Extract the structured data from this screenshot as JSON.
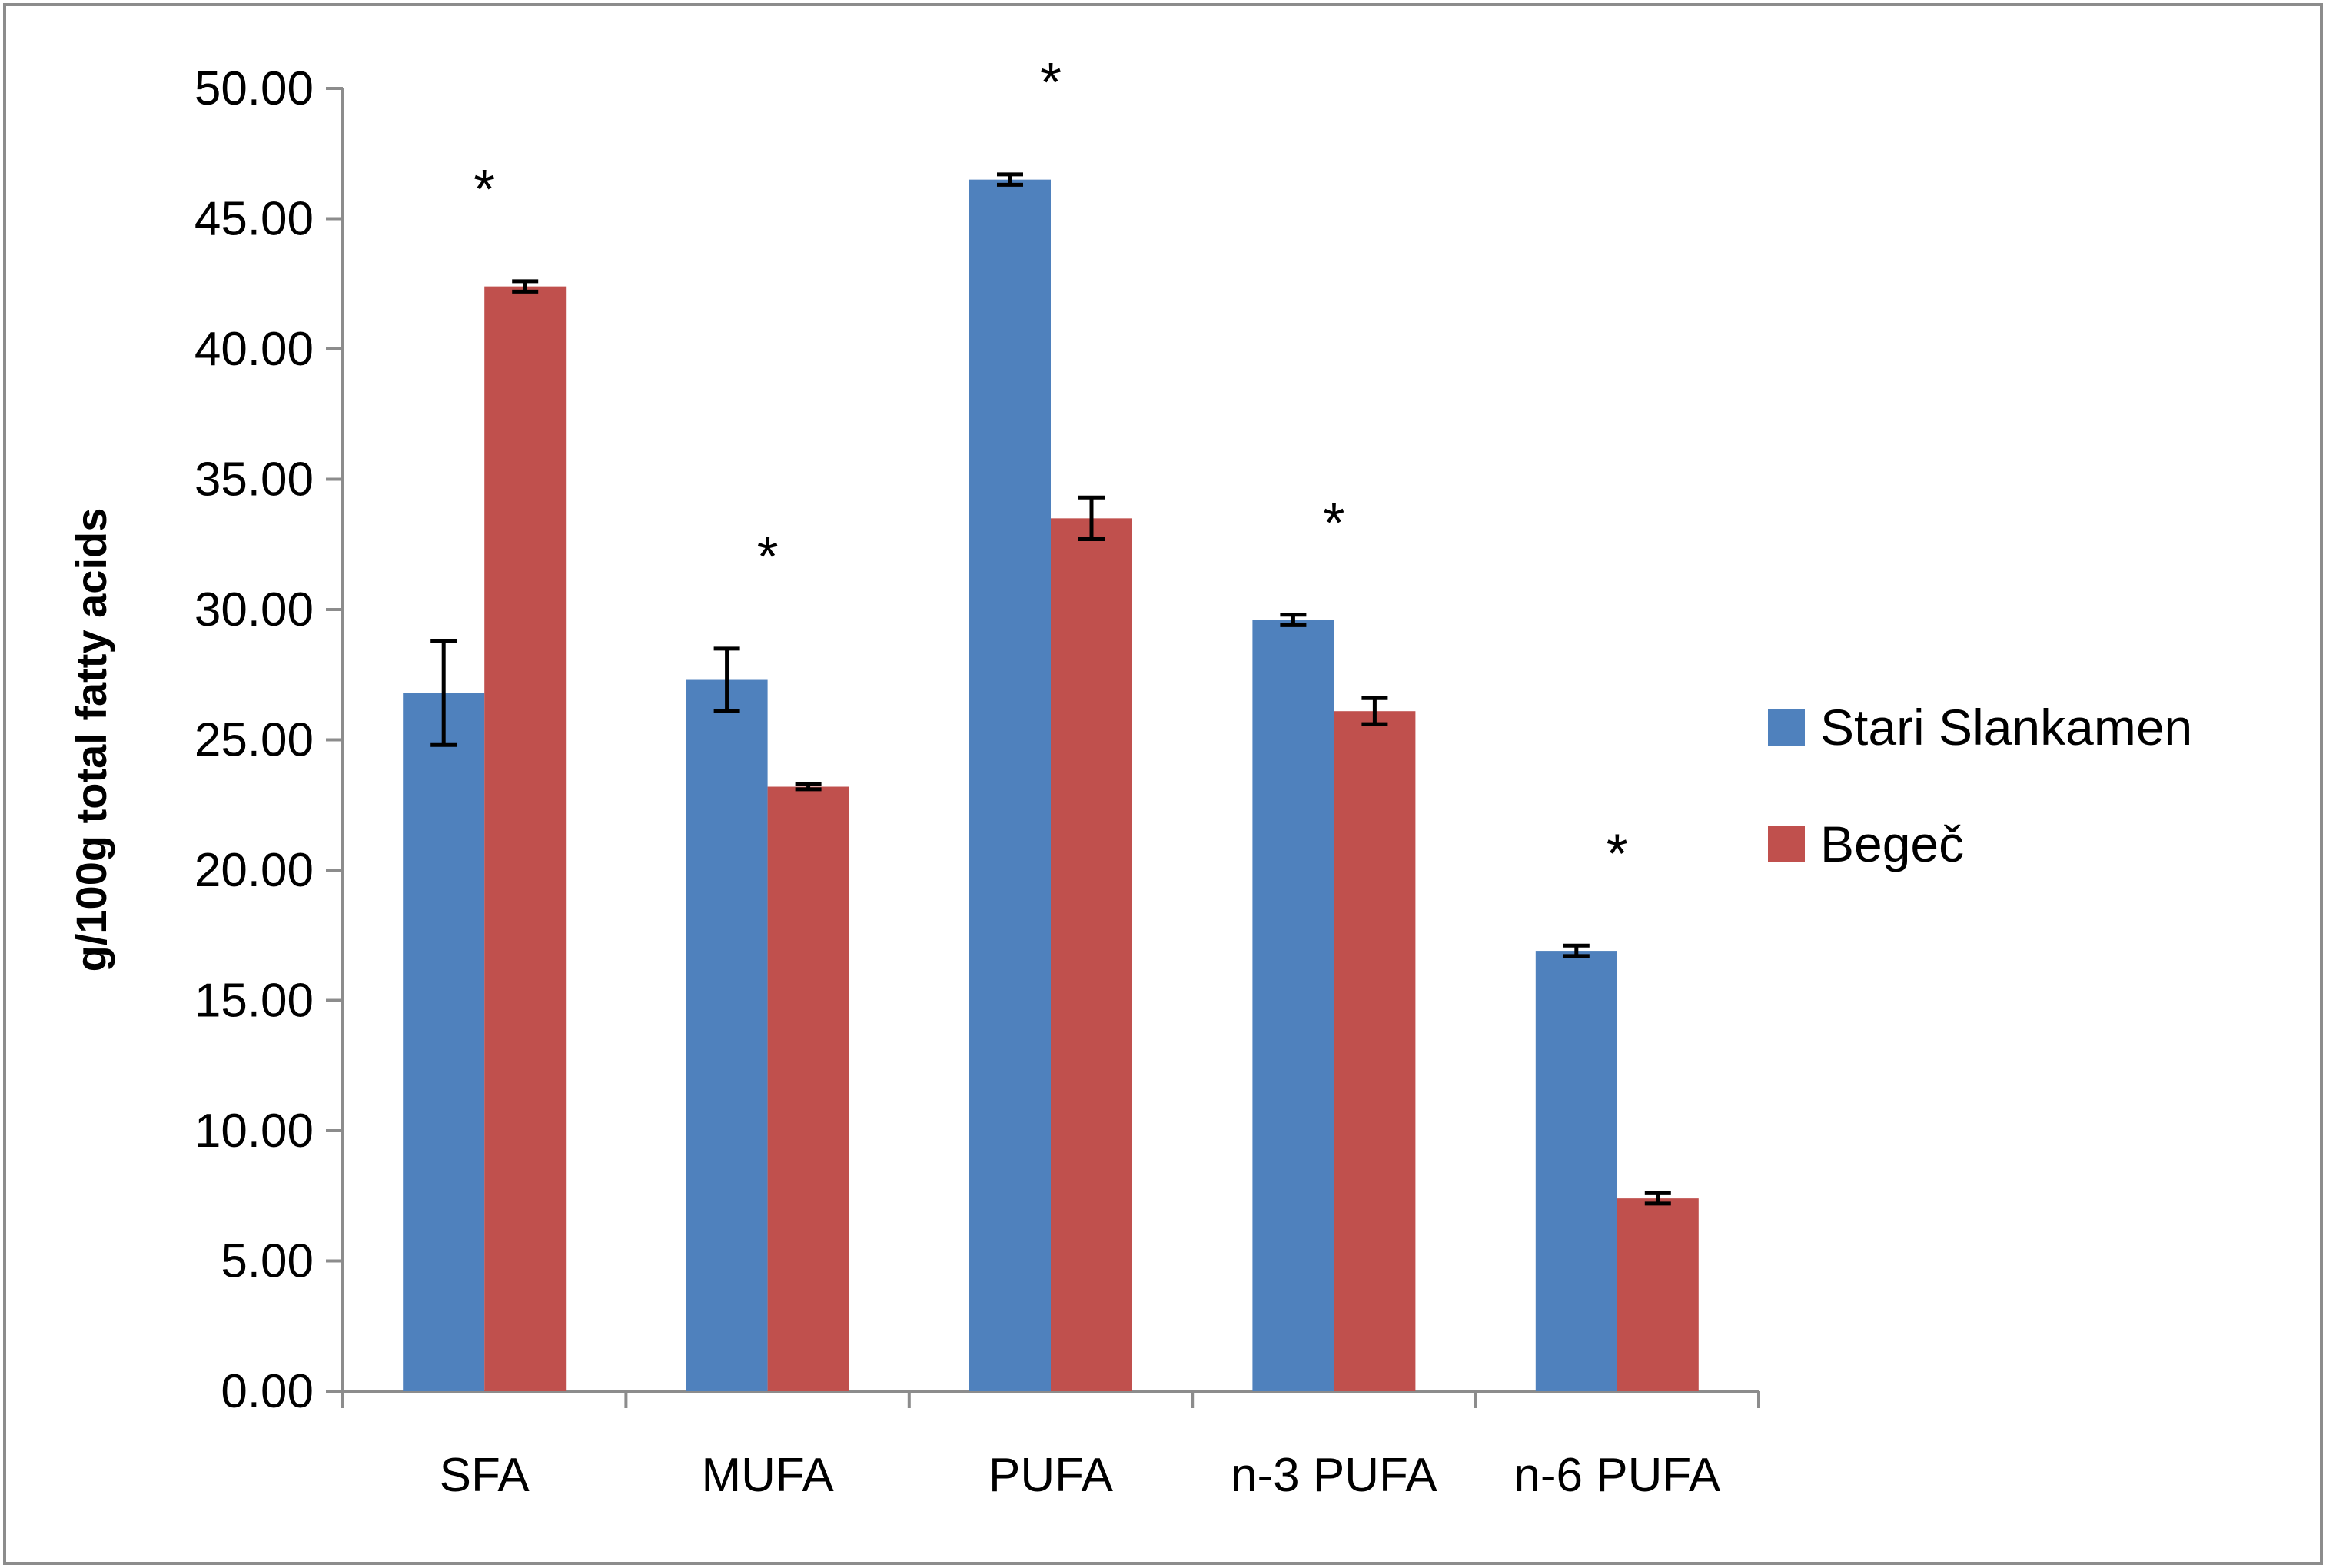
{
  "chart_data": {
    "type": "bar",
    "title": "",
    "xlabel": "",
    "ylabel": "g/100g total fatty acids",
    "ylim": [
      0,
      50
    ],
    "yticks": [
      "0.00",
      "5.00",
      "10.00",
      "15.00",
      "20.00",
      "25.00",
      "30.00",
      "35.00",
      "40.00",
      "45.00",
      "50.00"
    ],
    "grid": false,
    "legend_position": "right",
    "categories": [
      "SFA",
      "MUFA",
      "PUFA",
      "n-3 PUFA",
      "n-6 PUFA"
    ],
    "series": [
      {
        "name": "Stari Slankamen",
        "color": "#4f81bd",
        "values": [
          26.8,
          27.3,
          46.5,
          29.6,
          16.9
        ],
        "errors": [
          2.0,
          1.2,
          0.2,
          0.2,
          0.2
        ]
      },
      {
        "name": "Begeč",
        "color": "#c0504d",
        "values": [
          42.4,
          23.2,
          33.5,
          26.1,
          7.4
        ],
        "errors": [
          0.2,
          0.1,
          0.8,
          0.5,
          0.2
        ]
      }
    ],
    "significance": [
      "*",
      "*",
      "*",
      "*",
      "*"
    ]
  }
}
